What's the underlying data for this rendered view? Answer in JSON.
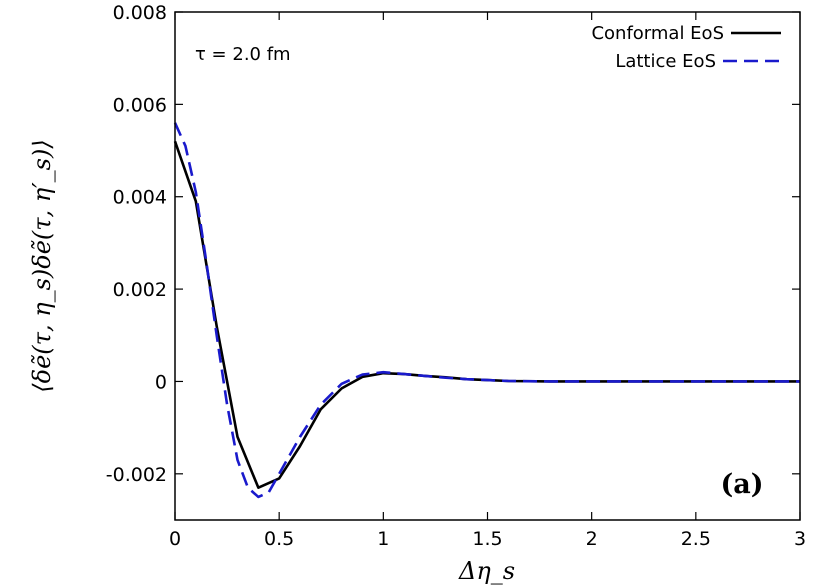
{
  "chart_data": {
    "type": "line",
    "xlabel": "Δη_s",
    "ylabel": "⟨δẽ(τ, η_s)δẽ(τ, η′_s)⟩",
    "xlim": [
      0,
      3
    ],
    "ylim": [
      -0.003,
      0.008
    ],
    "xticks": [
      0,
      0.5,
      1,
      1.5,
      2,
      2.5,
      3
    ],
    "xtick_labels": [
      "0",
      "0.5",
      "1",
      "1.5",
      "2",
      "2.5",
      "3"
    ],
    "yticks": [
      -0.002,
      0,
      0.002,
      0.004,
      0.006,
      0.008
    ],
    "ytick_labels": [
      "-0.002",
      "0",
      "0.002",
      "0.004",
      "0.006",
      "0.008"
    ],
    "grid": false,
    "legend_position": "top-right",
    "annotation": "τ = 2.0 fm",
    "panel_label": "(a)",
    "series": [
      {
        "name": "Conformal EoS",
        "color": "#000000",
        "style": "solid",
        "x": [
          0,
          0.1,
          0.2,
          0.3,
          0.4,
          0.5,
          0.6,
          0.7,
          0.8,
          0.9,
          1.0,
          1.1,
          1.2,
          1.3,
          1.4,
          1.5,
          1.6,
          1.8,
          2.0,
          2.2,
          2.4,
          2.6,
          2.8,
          3.0
        ],
        "y": [
          0.0052,
          0.0039,
          0.0012,
          -0.0012,
          -0.0023,
          -0.0021,
          -0.0014,
          -0.0006,
          -0.00015,
          0.0001,
          0.00018,
          0.00016,
          0.00012,
          9e-05,
          5e-05,
          3e-05,
          1e-05,
          0.0,
          0.0,
          0.0,
          0.0,
          0.0,
          0.0,
          0.0
        ]
      },
      {
        "name": "Lattice EoS",
        "color": "#1a1acc",
        "style": "dashed",
        "x": [
          0,
          0.05,
          0.1,
          0.15,
          0.2,
          0.25,
          0.3,
          0.35,
          0.4,
          0.45,
          0.5,
          0.55,
          0.6,
          0.7,
          0.8,
          0.9,
          1.0,
          1.1,
          1.2,
          1.3,
          1.4,
          1.5,
          1.6,
          1.8,
          2.0,
          2.2,
          2.4,
          2.6,
          2.8,
          3.0
        ],
        "y": [
          0.0056,
          0.0051,
          0.0041,
          0.0026,
          0.001,
          -0.0005,
          -0.0017,
          -0.0023,
          -0.0025,
          -0.0024,
          -0.002,
          -0.0016,
          -0.0012,
          -0.0005,
          -5e-05,
          0.00015,
          0.0002,
          0.00016,
          0.00012,
          8e-05,
          5e-05,
          3e-05,
          1e-05,
          0.0,
          0.0,
          0.0,
          0.0,
          0.0,
          0.0,
          0.0
        ]
      }
    ]
  }
}
